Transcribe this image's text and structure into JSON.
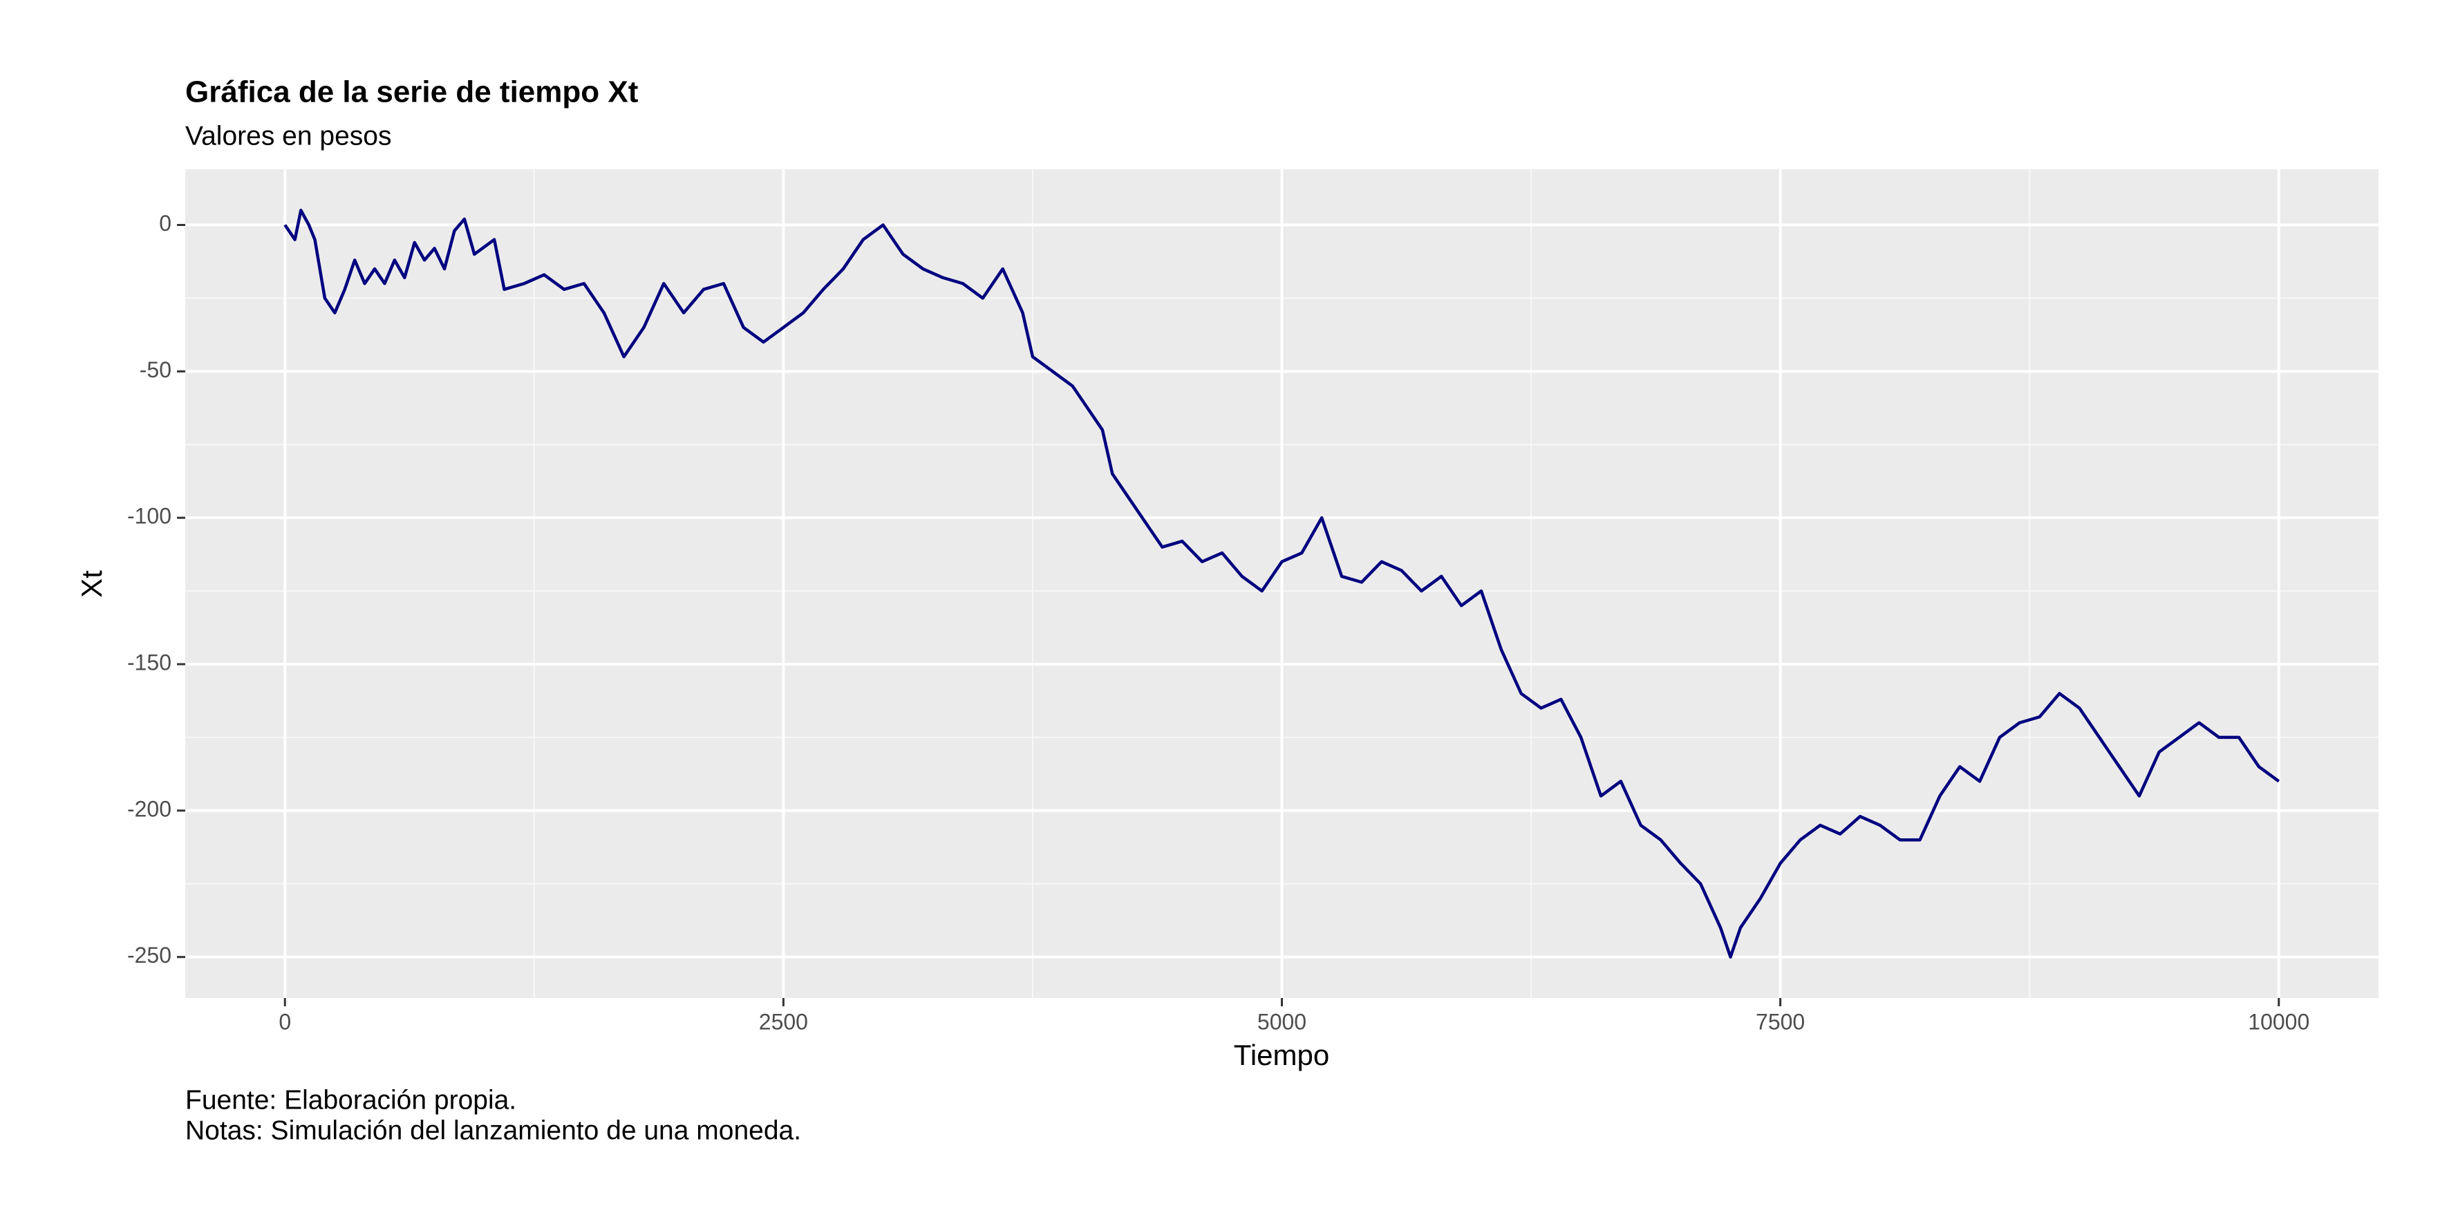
{
  "chart_data": {
    "type": "line",
    "title": "Gráfica de la serie de tiempo Xt",
    "subtitle": "Valores en pesos",
    "x_label": "Tiempo",
    "y_label": "Xt",
    "caption": [
      "Fuente: Elaboración propia.",
      "Notas: Simulación del lanzamiento de una moneda."
    ],
    "x": [
      0,
      50,
      80,
      120,
      150,
      200,
      250,
      300,
      350,
      400,
      450,
      500,
      550,
      600,
      650,
      700,
      750,
      800,
      850,
      900,
      950,
      1050,
      1100,
      1200,
      1300,
      1400,
      1500,
      1600,
      1700,
      1800,
      1900,
      2000,
      2100,
      2200,
      2300,
      2400,
      2500,
      2600,
      2700,
      2800,
      2900,
      3000,
      3100,
      3200,
      3300,
      3400,
      3500,
      3600,
      3700,
      3750,
      3850,
      3950,
      4050,
      4100,
      4150,
      4200,
      4300,
      4400,
      4500,
      4600,
      4700,
      4800,
      4900,
      5000,
      5100,
      5200,
      5300,
      5400,
      5500,
      5600,
      5700,
      5800,
      5900,
      6000,
      6100,
      6200,
      6300,
      6400,
      6500,
      6600,
      6700,
      6800,
      6900,
      7000,
      7100,
      7200,
      7250,
      7300,
      7400,
      7500,
      7600,
      7700,
      7800,
      7900,
      8000,
      8100,
      8200,
      8300,
      8400,
      8500,
      8600,
      8700,
      8800,
      8900,
      9000,
      9100,
      9200,
      9300,
      9400,
      9500,
      9600,
      9700,
      9800,
      9900,
      10000
    ],
    "values": [
      0,
      -5,
      5,
      0,
      -5,
      -25,
      -30,
      -22,
      -12,
      -20,
      -15,
      -20,
      -12,
      -18,
      -6,
      -12,
      -8,
      -15,
      -2,
      2,
      -10,
      -5,
      -22,
      -20,
      -17,
      -22,
      -20,
      -30,
      -45,
      -35,
      -20,
      -30,
      -22,
      -20,
      -35,
      -40,
      -35,
      -30,
      -22,
      -15,
      -5,
      0,
      -10,
      -15,
      -18,
      -20,
      -25,
      -15,
      -30,
      -45,
      -50,
      -55,
      -65,
      -70,
      -85,
      -90,
      -100,
      -110,
      -108,
      -115,
      -112,
      -120,
      -125,
      -115,
      -112,
      -100,
      -120,
      -122,
      -115,
      -118,
      -125,
      -120,
      -130,
      -125,
      -145,
      -160,
      -165,
      -162,
      -175,
      -195,
      -190,
      -205,
      -210,
      -218,
      -225,
      -240,
      -250,
      -240,
      -230,
      -218,
      -210,
      -205,
      -208,
      -202,
      -205,
      -210,
      -210,
      -195,
      -185,
      -190,
      -175,
      -170,
      -168,
      -160,
      -165,
      -175,
      -185,
      -195,
      -180,
      -175,
      -170,
      -175,
      -175,
      -185,
      -190
    ],
    "color": "#000080",
    "xlim": [
      -500,
      10500
    ],
    "ylim": [
      -264,
      19
    ],
    "xticks": [
      0,
      2500,
      5000,
      7500,
      10000
    ],
    "yticks": [
      0,
      -50,
      -100,
      -150,
      -200,
      -250
    ],
    "grid": true
  }
}
